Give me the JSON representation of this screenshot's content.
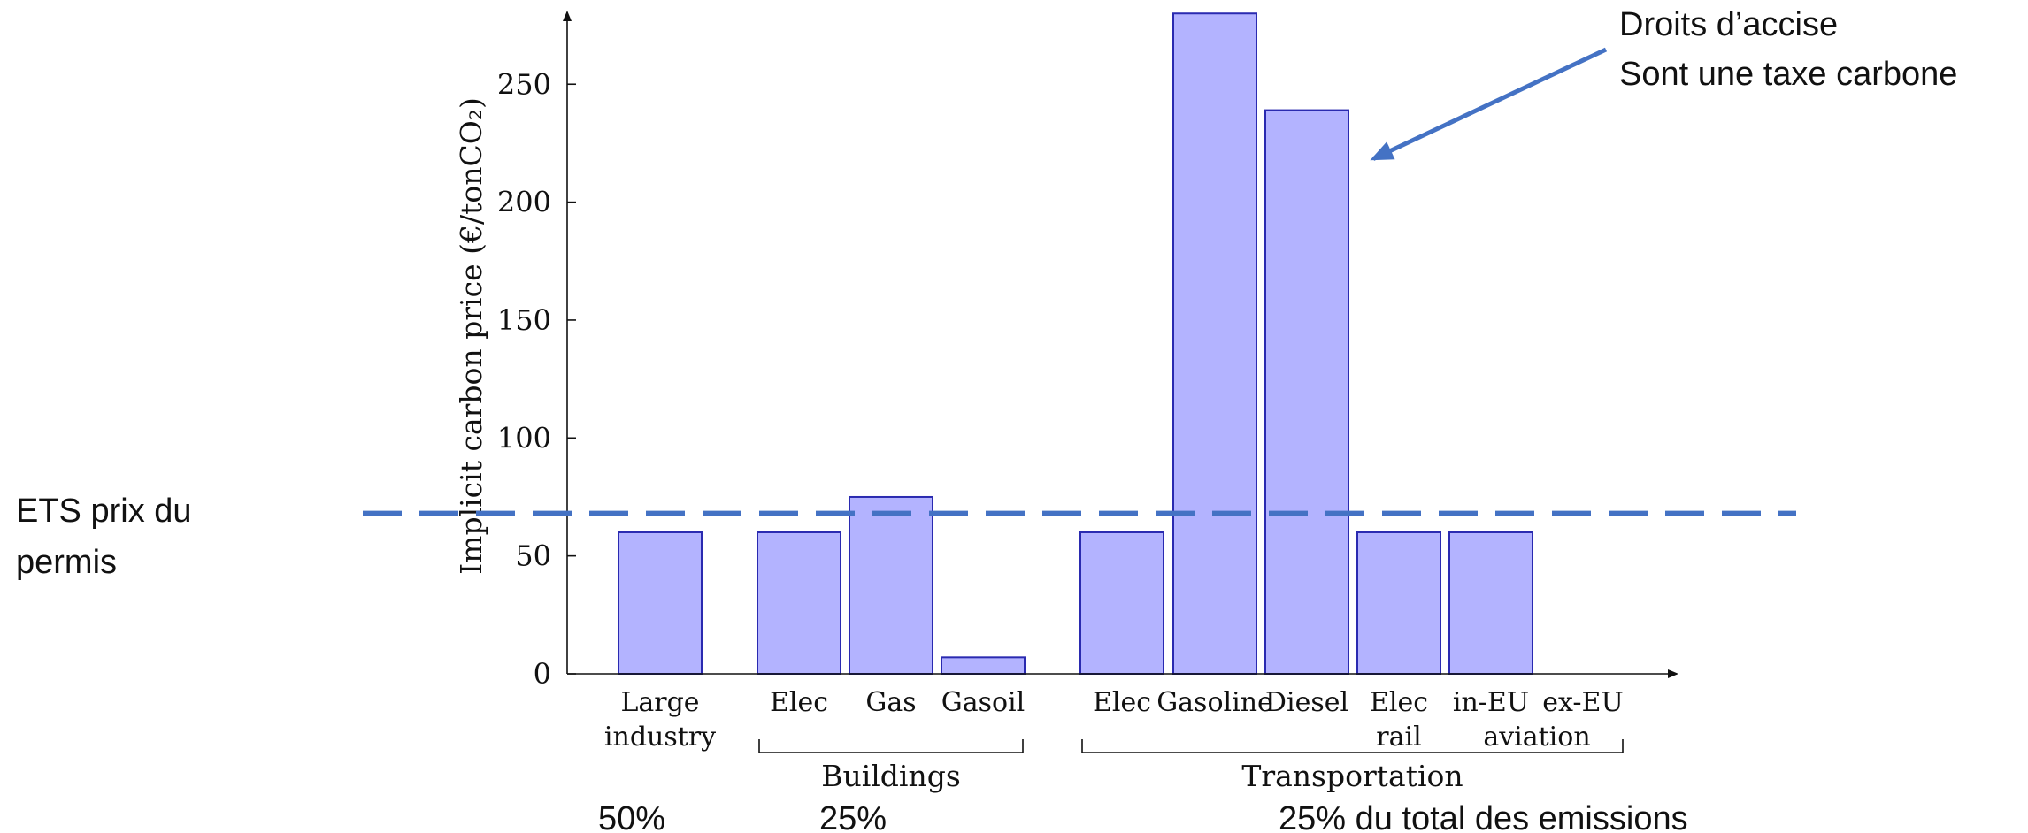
{
  "chart_data": {
    "type": "bar",
    "ylabel": "Implicit carbon price (€/tonCO₂)",
    "ylim": [
      0,
      280
    ],
    "yticks": [
      0,
      50,
      100,
      150,
      200,
      250
    ],
    "grid": false,
    "categories": [
      {
        "lines": [
          "Large",
          "industry"
        ]
      },
      {
        "lines": [
          "Elec"
        ]
      },
      {
        "lines": [
          "Gas"
        ]
      },
      {
        "lines": [
          "Gasoil"
        ]
      },
      {
        "lines": [
          "Elec"
        ]
      },
      {
        "lines": [
          "Gasoline"
        ]
      },
      {
        "lines": [
          "Diesel"
        ]
      },
      {
        "lines": [
          "Elec",
          "rail"
        ]
      },
      {
        "lines": [
          "in-EU"
        ]
      },
      {
        "lines": [
          "ex-EU"
        ]
      }
    ],
    "values": [
      60,
      60,
      75,
      7,
      60,
      280,
      239,
      60,
      60,
      0
    ],
    "group_labels": [
      {
        "label": "Buildings",
        "from": 1,
        "to": 3
      },
      {
        "label": "Transportation",
        "from": 4,
        "to": 9
      }
    ],
    "sub_label": {
      "label": "aviation",
      "from": 8,
      "to": 9
    },
    "reference_line": {
      "value": 68,
      "label_lines": [
        "ETS prix du",
        "permis"
      ],
      "color": "#4472c4"
    },
    "annotation": {
      "lines": [
        "Droits d’accise",
        "Sont une taxe carbone"
      ],
      "target_index": 6,
      "color": "#4472c4"
    },
    "share_labels": [
      "50%",
      "25%",
      "25% du total des emissions"
    ]
  }
}
